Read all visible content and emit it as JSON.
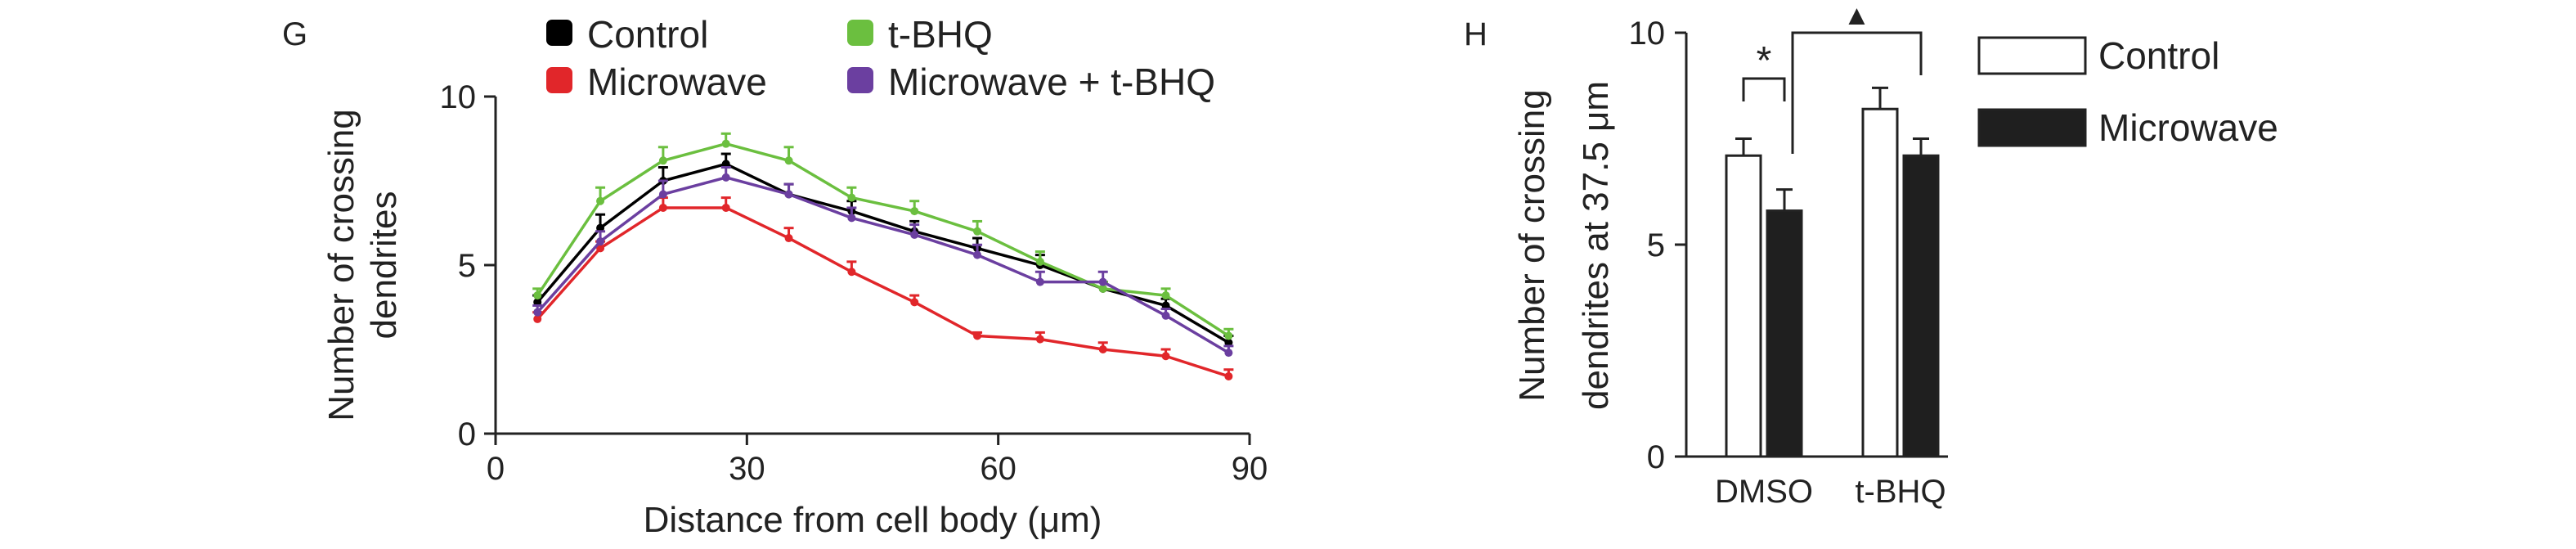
{
  "chart_data": [
    {
      "type": "line",
      "panel_label": "G",
      "xlabel": "Distance from cell body (μm)",
      "ylabel_lines": [
        "Number of crossing",
        "dendrites"
      ],
      "xlim": [
        0,
        90
      ],
      "ylim": [
        0,
        10
      ],
      "xticks": [
        0,
        30,
        60,
        90
      ],
      "yticks": [
        0,
        5,
        10
      ],
      "grid": false,
      "legend_position": "top",
      "x": [
        5,
        12.5,
        20,
        27.5,
        35,
        42.5,
        50,
        57.5,
        65,
        72.5,
        80,
        87.5
      ],
      "series": [
        {
          "name": "Control",
          "color": "#000000",
          "values": [
            3.9,
            6.1,
            7.5,
            8.0,
            7.1,
            6.6,
            6.0,
            5.5,
            5.0,
            4.3,
            3.8,
            2.7
          ],
          "errors": [
            0.2,
            0.4,
            0.4,
            0.3,
            0.3,
            0.3,
            0.3,
            0.3,
            0.3,
            0.2,
            0.2,
            0.2
          ]
        },
        {
          "name": "Microwave",
          "color": "#e1262a",
          "values": [
            3.4,
            5.5,
            6.7,
            6.7,
            5.8,
            4.8,
            3.9,
            2.9,
            2.8,
            2.5,
            2.3,
            1.7
          ],
          "errors": [
            0.2,
            0.2,
            0.3,
            0.3,
            0.3,
            0.3,
            0.2,
            0.1,
            0.2,
            0.2,
            0.2,
            0.2
          ]
        },
        {
          "name": "t-BHQ",
          "color": "#6bbf3f",
          "values": [
            4.1,
            6.9,
            8.1,
            8.6,
            8.1,
            7.0,
            6.6,
            6.0,
            5.1,
            4.3,
            4.1,
            2.9
          ],
          "errors": [
            0.2,
            0.4,
            0.4,
            0.3,
            0.4,
            0.3,
            0.3,
            0.3,
            0.3,
            0.2,
            0.2,
            0.2
          ]
        },
        {
          "name": "Microwave + t-BHQ",
          "color": "#6b3fa0",
          "values": [
            3.6,
            5.7,
            7.1,
            7.6,
            7.1,
            6.4,
            5.9,
            5.3,
            4.5,
            4.5,
            3.5,
            2.4
          ],
          "errors": [
            0.2,
            0.3,
            0.4,
            0.3,
            0.3,
            0.3,
            0.3,
            0.3,
            0.3,
            0.3,
            0.2,
            0.2
          ]
        }
      ]
    },
    {
      "type": "bar",
      "panel_label": "H",
      "ylabel_lines": [
        "Number of crossing",
        "dendrites at 37.5 μm"
      ],
      "ylim": [
        0,
        10
      ],
      "yticks": [
        0,
        5,
        10
      ],
      "grid": false,
      "legend_position": "right",
      "categories": [
        "DMSO",
        "t-BHQ"
      ],
      "series": [
        {
          "name": "Control",
          "fill": "#ffffff",
          "values": [
            7.1,
            8.2
          ],
          "errors": [
            0.4,
            0.5
          ]
        },
        {
          "name": "Microwave",
          "fill": "#1f1f1f",
          "values": [
            5.8,
            7.1
          ],
          "errors": [
            0.5,
            0.4
          ]
        }
      ],
      "annotations": [
        {
          "text": "*",
          "between": "DMSO Control – DMSO Microwave"
        },
        {
          "text": "▲",
          "between": "DMSO Microwave – t-BHQ Microwave"
        }
      ]
    }
  ]
}
